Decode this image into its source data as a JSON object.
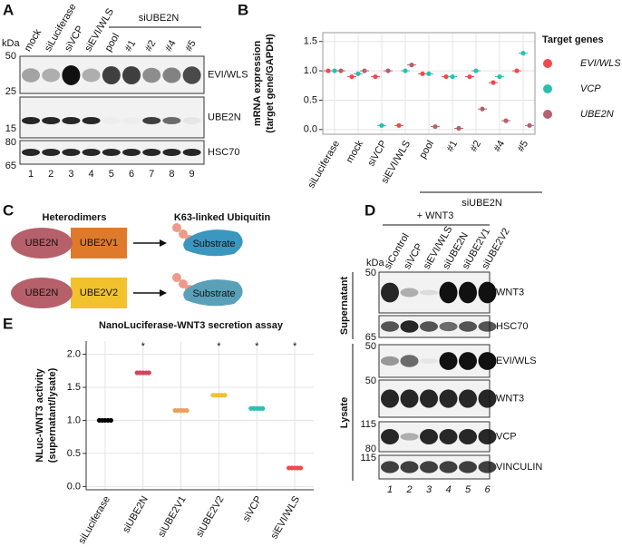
{
  "panel_labels": [
    "A",
    "B",
    "C",
    "D",
    "E"
  ],
  "panel_a": {
    "kda": "kDa",
    "lanes": [
      "mock",
      "siLuciferase",
      "siVCP",
      "siEVI/WLS",
      "pool",
      "#1",
      "#2",
      "#4",
      "#5"
    ],
    "group_label": "siUBE2N",
    "markers": [
      "50",
      "25",
      "15",
      "80",
      "65"
    ],
    "rows": [
      "EVI/WLS",
      "UBE2N",
      "HSC70"
    ],
    "lane_numbers": [
      "1",
      "2",
      "3",
      "4",
      "5",
      "6",
      "7",
      "8",
      "9"
    ]
  },
  "panel_c": {
    "headers": [
      "Heterodimers",
      "K63-linked Ubiquitin"
    ],
    "complexes": [
      {
        "left": "UBE2N",
        "right": "UBE2V1",
        "target": "Substrate"
      },
      {
        "left": "UBE2N",
        "right": "UBE2V2",
        "target": "Substrate"
      }
    ]
  },
  "panel_d": {
    "treatment": "+ WNT3",
    "kda": "kDa",
    "lanes": [
      "siControl",
      "siVCP",
      "siEVI/WLS",
      "siUBE2N",
      "siUBE2V1",
      "siUBE2V2"
    ],
    "fractions": [
      "Supernatant",
      "Lysate"
    ],
    "rows": [
      "WNT3",
      "HSC70",
      "EVI/WLS",
      "WNT3",
      "VCP",
      "VINCULIN"
    ],
    "markers": [
      "50",
      "65",
      "50",
      "50",
      "115",
      "80",
      "115"
    ],
    "lane_numbers": [
      "1",
      "2",
      "3",
      "4",
      "5",
      "6"
    ]
  },
  "chart_data": [
    {
      "type": "dot",
      "ylabel": [
        "mRNA expression",
        "(target gene/GAPDH)"
      ],
      "categories": [
        "siLuciferase",
        "mock",
        "siVCP",
        "siEVI/WLS",
        "pool",
        "#1",
        "#2",
        "#4",
        "#5"
      ],
      "group_label": "siUBE2N",
      "legend_title": "Target genes",
      "ylim": [
        -0.08,
        1.65
      ],
      "yticks": [
        {
          "value": 0,
          "label": "0.0"
        },
        {
          "value": 0.5,
          "label": "0.5"
        },
        {
          "value": 1,
          "label": "1.0"
        },
        {
          "value": 1.5,
          "label": "1.5"
        }
      ],
      "grid": true,
      "series": [
        {
          "name": "EVI/WLS",
          "color": "#f0484b",
          "values": [
            1,
            0.9,
            0.9,
            0.07,
            0.95,
            0.9,
            0.9,
            0.8,
            1.0
          ]
        },
        {
          "name": "VCP",
          "color": "#2bbfb0",
          "values": [
            1,
            0.95,
            0.07,
            1.0,
            0.95,
            0.9,
            1.0,
            0.9,
            1.3
          ]
        },
        {
          "name": "UBE2N",
          "color": "#b5606a",
          "values": [
            1,
            1.0,
            1.0,
            1.1,
            0.05,
            0.02,
            0.35,
            0.15,
            0.07
          ]
        }
      ]
    },
    {
      "type": "dot",
      "title": "NanoLuciferase-WNT3 secretion assay",
      "ylabel": [
        "NLuc-WNT3 activity",
        "(supernatant/lysate)"
      ],
      "categories": [
        "siLuciferase",
        "siUBE2N",
        "siUBE2V1",
        "siUBE2V2",
        "siVCP",
        "siEVI/WLS"
      ],
      "values": [
        1.0,
        1.72,
        1.15,
        1.38,
        1.18,
        0.28
      ],
      "colors": [
        "#000000",
        "#d2455a",
        "#e8a05a",
        "#f0c030",
        "#2bbfb0",
        "#f0484b"
      ],
      "significance": [
        null,
        "*",
        null,
        "*",
        "*",
        "*"
      ],
      "ylim": [
        -0.05,
        2.2
      ],
      "yticks": [
        {
          "value": 0,
          "label": "0.0"
        },
        {
          "value": 0.5,
          "label": "0.5"
        },
        {
          "value": 1,
          "label": "1.0"
        },
        {
          "value": 1.5,
          "label": "1.5"
        },
        {
          "value": 2,
          "label": "2.0"
        }
      ],
      "grid": true
    }
  ]
}
